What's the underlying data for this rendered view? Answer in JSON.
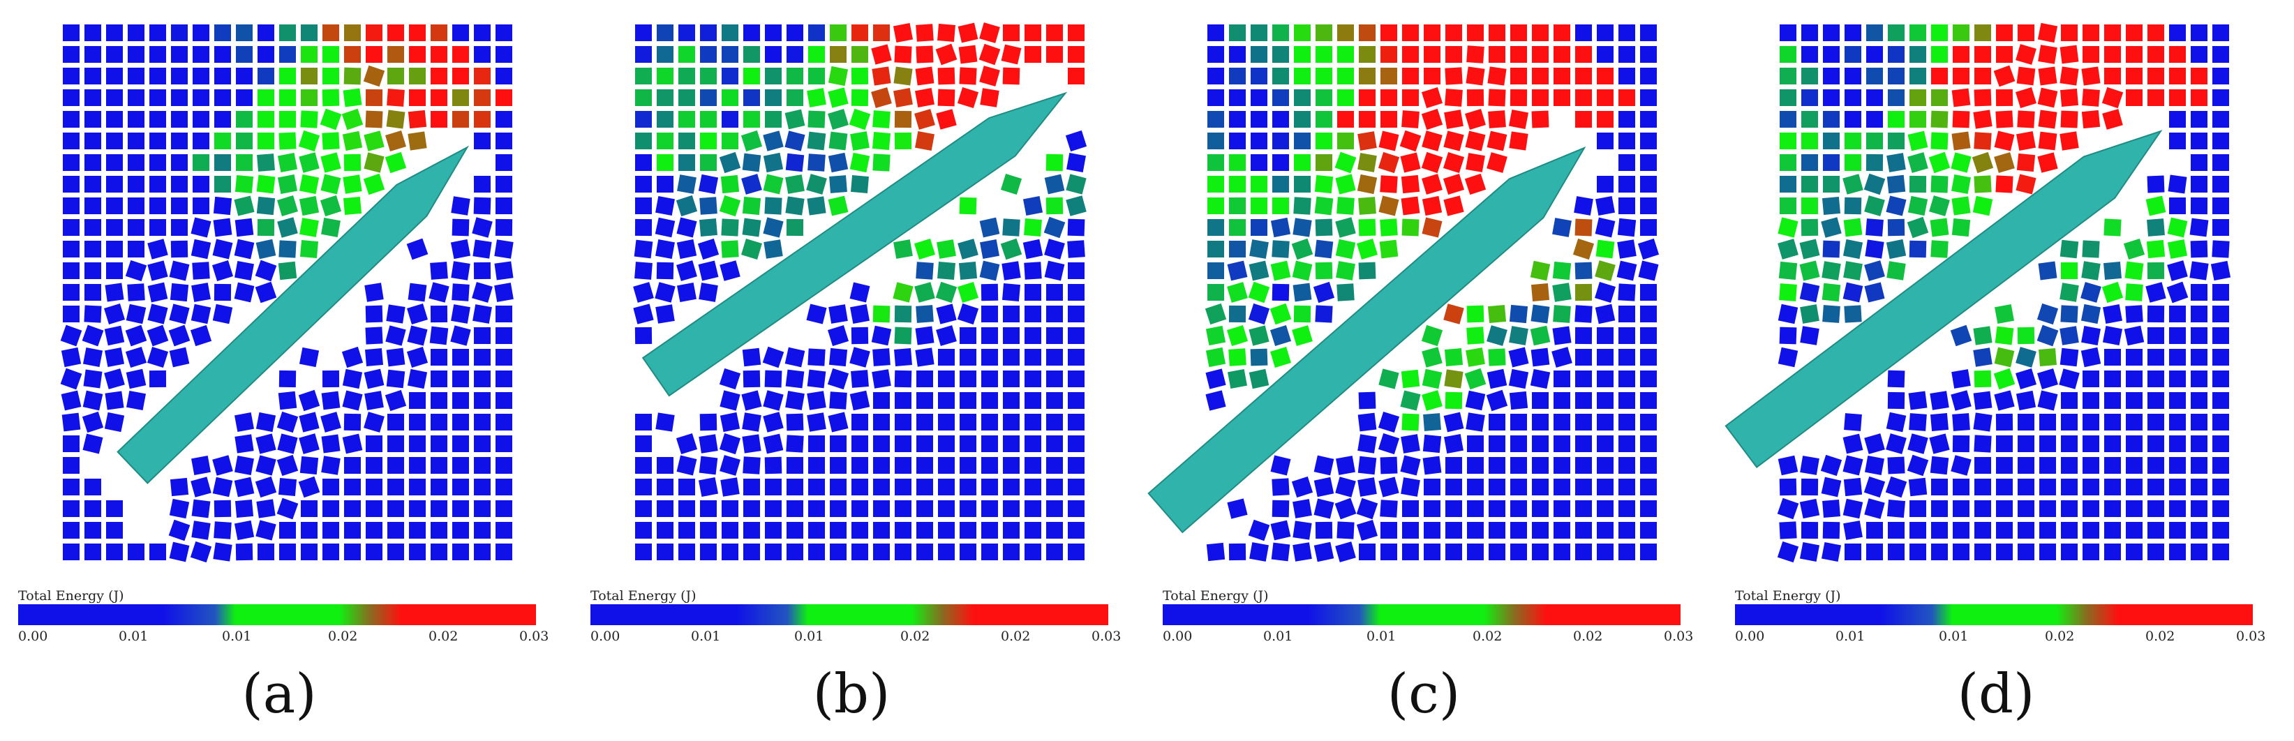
{
  "colorbar": {
    "title": "Total Energy (J)",
    "ticks": [
      "0.00",
      "0.01",
      "0.01",
      "0.02",
      "0.02",
      "0.03"
    ],
    "colors": {
      "low": "#1010e8",
      "mid": "#10f010",
      "high": "#ff1010"
    }
  },
  "panels": [
    {
      "label": "(a)"
    },
    {
      "label": "(b)"
    },
    {
      "label": "(c)"
    },
    {
      "label": "(d)"
    }
  ],
  "ship_color": "#2fb3aa"
}
